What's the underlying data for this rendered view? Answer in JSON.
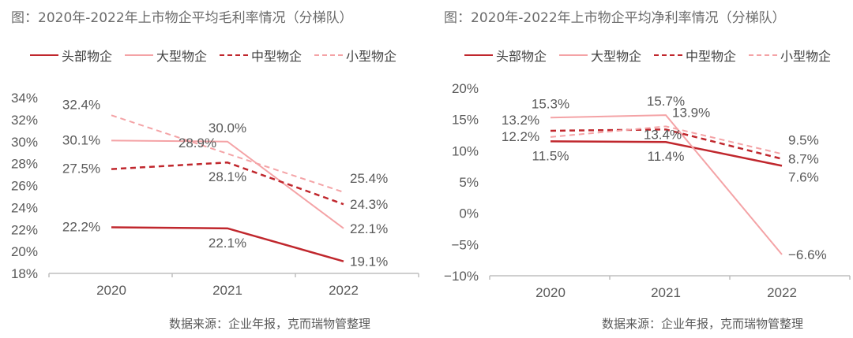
{
  "colors": {
    "dark": "#c0272d",
    "light": "#f4a3a6",
    "text": "#595959",
    "axis": "#bfbfbf"
  },
  "legend": [
    {
      "label": "头部物企",
      "style": "solid",
      "tone": "dark"
    },
    {
      "label": "大型物企",
      "style": "solid",
      "tone": "light"
    },
    {
      "label": "中型物企",
      "style": "dashed",
      "tone": "dark"
    },
    {
      "label": "小型物企",
      "style": "dashed",
      "tone": "light"
    }
  ],
  "chart_data": [
    {
      "type": "line",
      "title": "图：2020年-2022年上市物企平均毛利率情况（分梯队）",
      "source": "数据来源：企业年报，克而瑞物管整理",
      "categories": [
        "2020",
        "2021",
        "2022"
      ],
      "ylim": [
        18,
        34
      ],
      "yticks": [
        "18%",
        "20%",
        "22%",
        "24%",
        "26%",
        "28%",
        "30%",
        "32%",
        "34%"
      ],
      "ytick_values": [
        18,
        20,
        22,
        24,
        26,
        28,
        30,
        32,
        34
      ],
      "grid": false,
      "legend_placement": "top-left",
      "series": [
        {
          "name": "头部物企",
          "values": [
            22.2,
            22.1,
            19.1
          ],
          "labels": [
            "22.2%",
            "22.1%",
            "19.1%"
          ],
          "label_pos": [
            "left",
            "below",
            "right"
          ]
        },
        {
          "name": "大型物企",
          "values": [
            30.1,
            30.0,
            22.1
          ],
          "labels": [
            "30.1%",
            "30.0%",
            "22.1%"
          ],
          "label_pos": [
            "left",
            "above",
            "right"
          ]
        },
        {
          "name": "中型物企",
          "values": [
            27.5,
            28.1,
            24.3
          ],
          "labels": [
            "27.5%",
            "28.1%",
            "24.3%"
          ],
          "label_pos": [
            "left",
            "below",
            "right"
          ]
        },
        {
          "name": "小型物企",
          "values": [
            32.4,
            28.9,
            25.4
          ],
          "labels": [
            "32.4%",
            "28.9%",
            "25.4%"
          ],
          "label_pos": [
            "upleft",
            "upleft",
            "upright"
          ]
        }
      ]
    },
    {
      "type": "line",
      "title": "图：2020年-2022年上市物企平均净利率情况（分梯队）",
      "source": "数据来源：企业年报，克而瑞物管整理",
      "categories": [
        "2020",
        "2021",
        "2022"
      ],
      "ylim": [
        -10,
        20
      ],
      "yticks": [
        "−10%",
        "−5%",
        "0%",
        "5%",
        "10%",
        "15%",
        "20%"
      ],
      "ytick_values": [
        -10,
        -5,
        0,
        5,
        10,
        15,
        20
      ],
      "grid": false,
      "legend_placement": "top-left",
      "series": [
        {
          "name": "头部物企",
          "values": [
            11.5,
            11.4,
            7.6
          ],
          "labels": [
            "11.5%",
            "11.4%",
            "7.6%"
          ],
          "label_pos": [
            "below",
            "below",
            "downright"
          ]
        },
        {
          "name": "大型物企",
          "values": [
            15.3,
            15.7,
            -6.6
          ],
          "labels": [
            "15.3%",
            "15.7%",
            "−6.6%"
          ],
          "label_pos": [
            "above",
            "above",
            "right"
          ]
        },
        {
          "name": "中型物企",
          "values": [
            13.2,
            13.4,
            8.7
          ],
          "labels": [
            "13.2%",
            "13.4%",
            "8.7%"
          ],
          "label_pos": [
            "upleft",
            "near",
            "right"
          ]
        },
        {
          "name": "小型物企",
          "values": [
            12.2,
            13.9,
            9.5
          ],
          "labels": [
            "12.2%",
            "13.9%",
            "9.5%"
          ],
          "label_pos": [
            "left",
            "upright",
            "upright"
          ]
        }
      ]
    }
  ]
}
